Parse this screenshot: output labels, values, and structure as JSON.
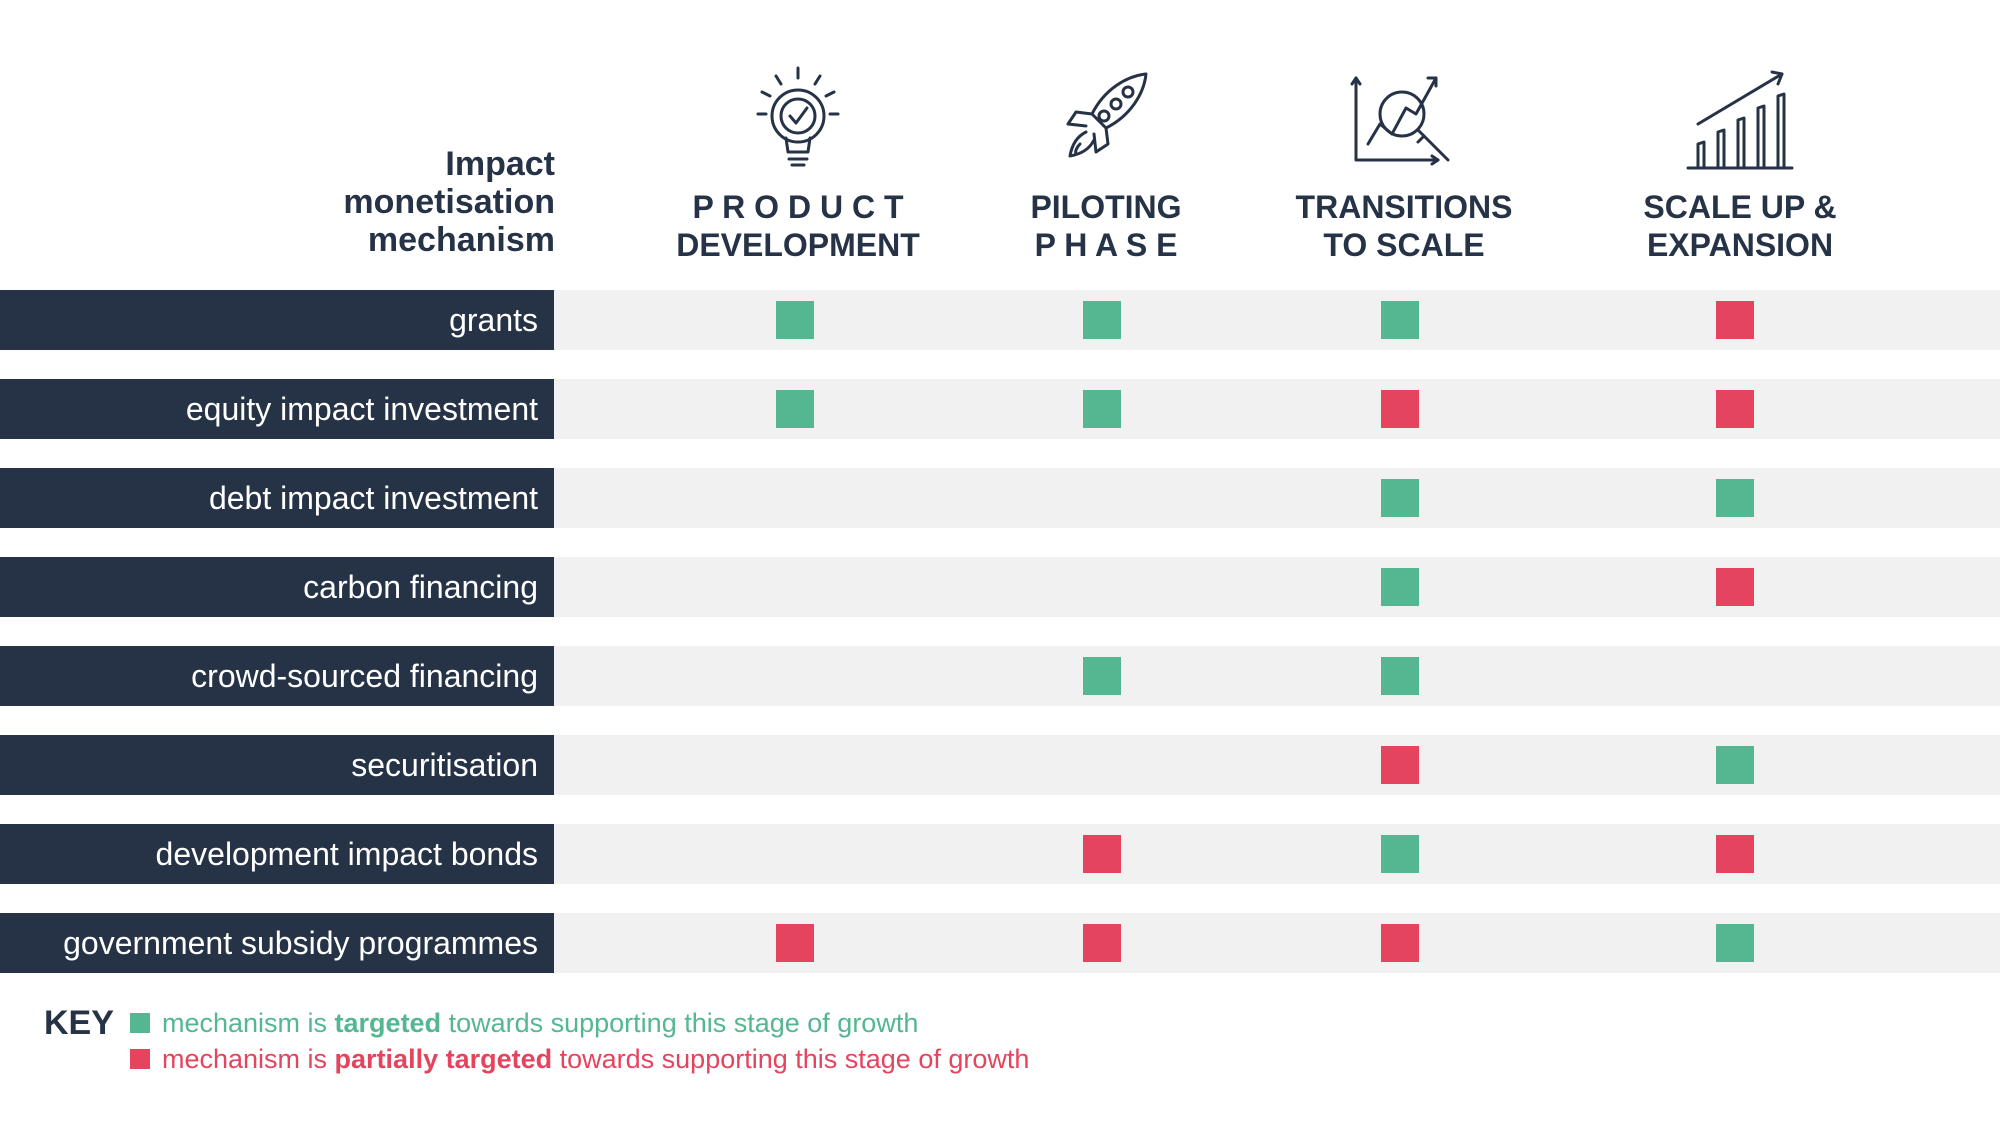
{
  "header": {
    "mechanism_label_lines": [
      "Impact",
      "monetisation",
      "mechanism"
    ]
  },
  "colors": {
    "navy": "#263347",
    "targeted": "#54b791",
    "partial": "#e5445f",
    "band": "#f1f1f1"
  },
  "stages": [
    {
      "icon": "lightbulb-check-icon",
      "label_lines": [
        "P R O D U C T",
        "DEVELOPMENT"
      ]
    },
    {
      "icon": "rocket-icon",
      "label_lines": [
        "PILOTING",
        "P H A S E"
      ]
    },
    {
      "icon": "magnifier-chart-icon",
      "label_lines": [
        "TRANSITIONS",
        "TO   SCALE"
      ]
    },
    {
      "icon": "growth-bars-icon",
      "label_lines": [
        "SCALE UP &",
        "EXPANSION"
      ]
    }
  ],
  "mechanisms": [
    {
      "label": "grants",
      "cells": [
        "targeted",
        "targeted",
        "targeted",
        "partial"
      ]
    },
    {
      "label": "equity impact investment",
      "cells": [
        "targeted",
        "targeted",
        "partial",
        "partial"
      ]
    },
    {
      "label": "debt impact investment",
      "cells": [
        "",
        "",
        "targeted",
        "targeted"
      ]
    },
    {
      "label": "carbon financing",
      "cells": [
        "",
        "",
        "targeted",
        "partial"
      ]
    },
    {
      "label": "crowd-sourced financing",
      "cells": [
        "",
        "targeted",
        "targeted",
        ""
      ]
    },
    {
      "label": "securitisation",
      "cells": [
        "",
        "",
        "partial",
        "targeted"
      ]
    },
    {
      "label": "development impact bonds",
      "cells": [
        "",
        "partial",
        "targeted",
        "partial"
      ]
    },
    {
      "label": "government subsidy programmes",
      "cells": [
        "partial",
        "partial",
        "partial",
        "targeted"
      ]
    }
  ],
  "key": {
    "title": "KEY",
    "targeted": {
      "prefix": "mechanism is ",
      "emphasis": "targeted",
      "suffix": " towards supporting this stage of growth"
    },
    "partial": {
      "prefix": "mechanism is ",
      "emphasis": "partially targeted",
      "suffix": " towards supporting this stage of growth"
    }
  }
}
